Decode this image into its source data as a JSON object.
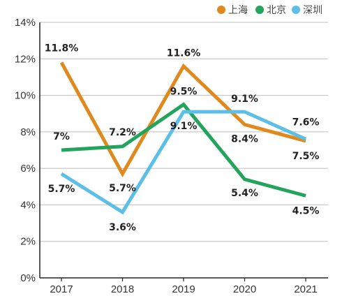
{
  "chart_data": {
    "type": "line",
    "categories": [
      "2017",
      "2018",
      "2019",
      "2020",
      "2021"
    ],
    "y_ticks": [
      "0%",
      "2%",
      "4%",
      "6%",
      "8%",
      "10%",
      "12%",
      "14%"
    ],
    "ylim": [
      0,
      14
    ],
    "grid": "horizontal",
    "legend_position": "top-right",
    "series": [
      {
        "name": "上海",
        "color": "#e08a1e",
        "values": [
          11.8,
          5.7,
          11.6,
          8.4,
          7.5
        ],
        "labels": [
          "11.8%",
          "5.7%",
          "11.6%",
          "8.4%",
          "7.5%"
        ]
      },
      {
        "name": "北京",
        "color": "#22a45d",
        "values": [
          7.0,
          7.2,
          9.5,
          5.4,
          4.5
        ],
        "labels": [
          "7%",
          "7.2%",
          "9.5%",
          "5.4%",
          "4.5%"
        ]
      },
      {
        "name": "深圳",
        "color": "#5bbfe8",
        "values": [
          5.7,
          3.6,
          9.1,
          9.1,
          7.6
        ],
        "labels": [
          "5.7%",
          "3.6%",
          "9.1%",
          "9.1%",
          "7.6%"
        ]
      }
    ]
  }
}
